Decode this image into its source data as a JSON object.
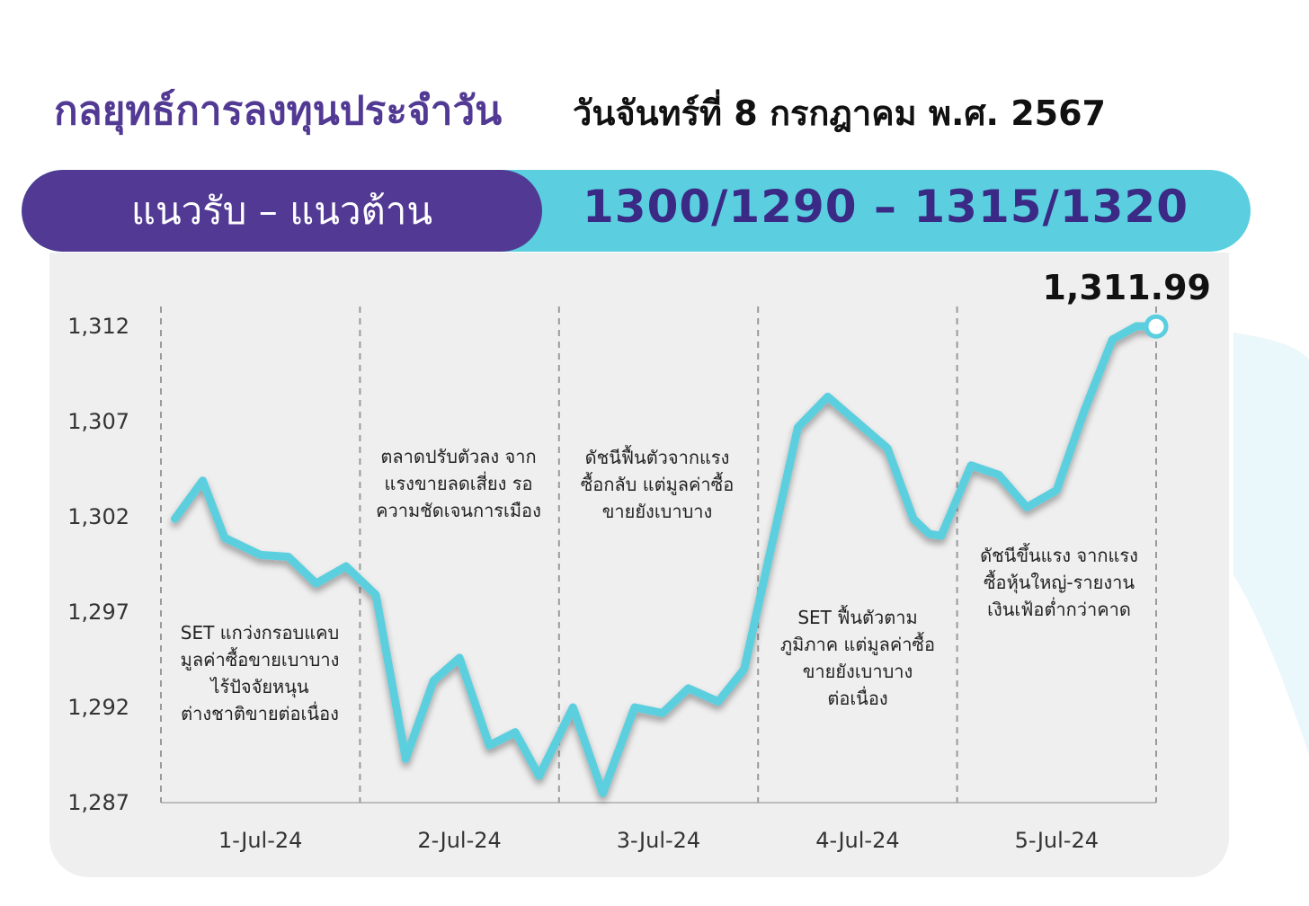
{
  "header": {
    "title": "กลยุทธ์การลงทุนประจำวัน",
    "date": "วันจันทร์ที่ 8 กรกฎาคม พ.ศ. 2567"
  },
  "banner": {
    "label": "แนวรับ – แนวต้าน",
    "range": "1300/1290  –  1315/1320"
  },
  "colors": {
    "purple": "#523a94",
    "cyan": "#5bcfdf",
    "line": "#5bcfdf",
    "panel": "#efefef"
  },
  "chart_data": {
    "type": "line",
    "title": "",
    "xlabel": "",
    "ylabel": "",
    "ylim": [
      1287,
      1312
    ],
    "yticks": [
      "1,312",
      "1,307",
      "1,302",
      "1,297",
      "1,292",
      "1,287"
    ],
    "ytick_values": [
      1312,
      1307,
      1302,
      1297,
      1292,
      1287
    ],
    "days": [
      "1-Jul-24",
      "2-Jul-24",
      "3-Jul-24",
      "4-Jul-24",
      "5-Jul-24"
    ],
    "x": [
      0.07,
      0.21,
      0.32,
      0.5,
      0.64,
      0.78,
      0.93,
      1.08,
      1.23,
      1.37,
      1.5,
      1.65,
      1.78,
      1.9,
      2.07,
      2.22,
      2.38,
      2.52,
      2.65,
      2.8,
      2.93,
      3.2,
      3.35,
      3.65,
      3.78,
      3.86,
      3.92,
      4.07,
      4.21,
      4.35,
      4.5,
      4.64,
      4.78,
      4.9,
      5.0
    ],
    "values": [
      1301.9,
      1303.9,
      1300.9,
      1300.0,
      1299.9,
      1298.5,
      1299.4,
      1297.9,
      1289.3,
      1293.4,
      1294.6,
      1290.0,
      1290.7,
      1288.4,
      1292.0,
      1287.5,
      1292.0,
      1291.7,
      1293.0,
      1292.3,
      1294.0,
      1306.7,
      1308.3,
      1305.6,
      1301.9,
      1301.1,
      1301.0,
      1304.7,
      1304.2,
      1302.5,
      1303.4,
      1307.6,
      1311.3,
      1312.0,
      1311.99
    ],
    "last_value_label": "1,311.99",
    "annotations": [
      {
        "day": "1-Jul-24",
        "lines": [
          "SET แกว่งกรอบแคบ",
          "มูลค่าซื้อขายเบาบาง",
          "ไร้ปัจจัยหนุน",
          "ต่างชาติขายต่อเนื่อง"
        ]
      },
      {
        "day": "2-Jul-24",
        "lines": [
          "ตลาดปรับตัวลง จาก",
          "แรงขายลดเสี่ยง รอ",
          "ความชัดเจนการเมือง"
        ]
      },
      {
        "day": "3-Jul-24",
        "lines": [
          "ดัชนีฟื้นตัวจากแรง",
          "ซื้อกลับ แต่มูลค่าซื้อ",
          "ขายยังเบาบาง"
        ]
      },
      {
        "day": "4-Jul-24",
        "lines": [
          "SET ฟื้นตัวตาม",
          "ภูมิภาค แต่มูลค่าซื้อ",
          "ขายยังเบาบาง",
          "ต่อเนื่อง"
        ]
      },
      {
        "day": "5-Jul-24",
        "lines": [
          "ดัชนีขึ้นแรง จากแรง",
          "ซื้อหุ้นใหญ่-รายงาน",
          "เงินเฟ้อต่ำกว่าคาด"
        ]
      }
    ],
    "grid": "vertical-dashed-day-separators",
    "legend": "none"
  }
}
